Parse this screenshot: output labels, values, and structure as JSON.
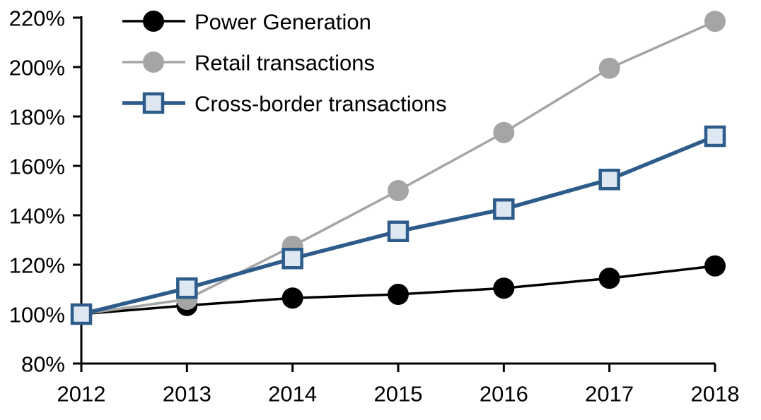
{
  "chart_data": {
    "type": "line",
    "title": "",
    "xlabel": "",
    "ylabel": "",
    "x_labels": [
      "2012",
      "2013",
      "2014",
      "2015",
      "2016",
      "2017",
      "2018"
    ],
    "y_ticks": [
      80,
      100,
      120,
      140,
      160,
      180,
      200,
      220
    ],
    "y_tick_labels": [
      "80%",
      "100%",
      "120%",
      "140%",
      "160%",
      "180%",
      "200%",
      "220%"
    ],
    "ylim": [
      80,
      220
    ],
    "grid": false,
    "legend_position": "top-left-inside",
    "axis_color": "#000000",
    "series": [
      {
        "name": "Power Generation",
        "marker": "circle",
        "color": "#000000",
        "marker_fill": "#000000",
        "line_width": 3.5,
        "values": [
          100,
          103.5,
          106.5,
          108,
          110.5,
          114.5,
          119.5
        ]
      },
      {
        "name": "Retail transactions",
        "marker": "circle",
        "color": "#a5a5a5",
        "marker_fill": "#a5a5a5",
        "line_width": 3.5,
        "values": [
          100,
          106,
          127.5,
          150,
          173.5,
          199.5,
          218.5
        ]
      },
      {
        "name": "Cross-border transactions",
        "marker": "square",
        "color": "#2e5c8a",
        "marker_fill": "#dde8f3",
        "line_width": 5.5,
        "values": [
          100,
          110.5,
          122.5,
          133.5,
          142.5,
          154.5,
          172
        ]
      }
    ]
  }
}
